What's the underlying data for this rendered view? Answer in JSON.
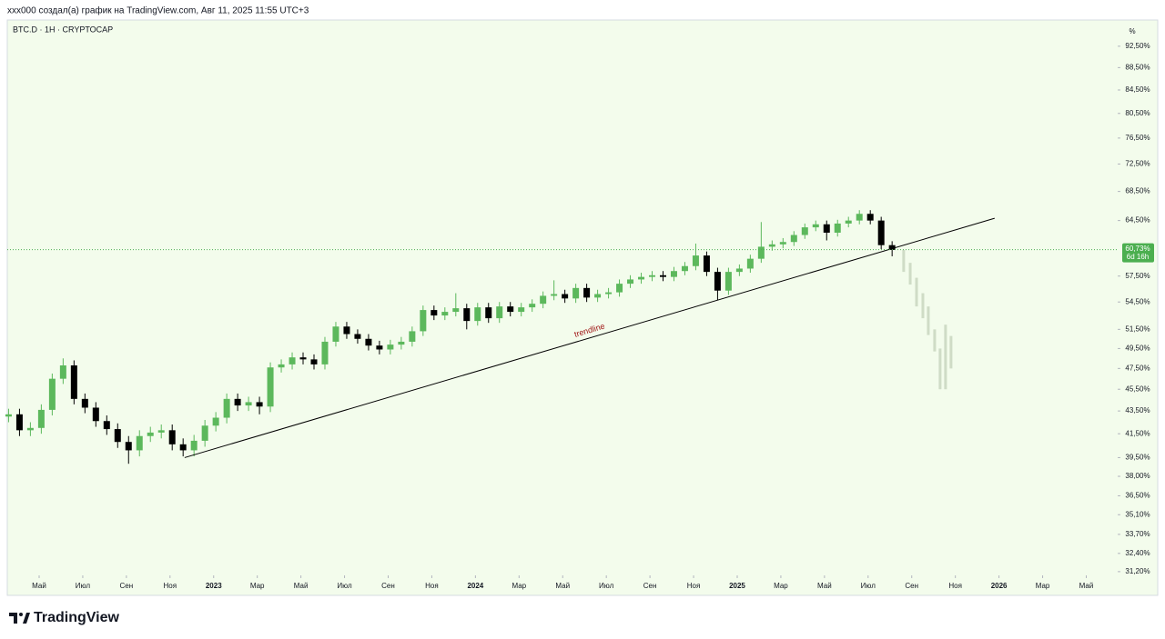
{
  "header": "xxx000 создал(а) график на TradingView.com, Авг 11, 2025 11:55 UTC+3",
  "footer_logo": "TradingView",
  "chart_data": {
    "type": "candlestick",
    "symbol": "BTC.D · 1H · CRYPTOCAP",
    "y_axis_label": "%",
    "log_scale": true,
    "grid": false,
    "up_color": "#5cb85c",
    "down_color": "#000000",
    "background": "#f3fcec",
    "x": [
      2.6,
      3.1,
      3.6,
      4.1,
      4.6,
      5.1,
      5.6,
      6.1,
      6.6,
      7.1,
      7.6,
      8.1,
      8.6,
      9.1,
      9.6,
      10.1,
      10.6,
      11.1,
      11.6,
      12.1,
      12.6,
      13.1,
      13.6,
      14.1,
      14.6,
      15.1,
      15.6,
      16.1,
      16.6,
      17.1,
      17.6,
      18.1,
      18.6,
      19.1,
      19.6,
      20.1,
      20.6,
      21.1,
      21.6,
      22.1,
      22.6,
      23.1,
      23.6,
      24.1,
      24.6,
      25.1,
      25.6,
      26.1,
      26.6,
      27.1,
      27.6,
      28.1,
      28.6,
      29.1,
      29.6,
      30.1,
      30.6,
      31.1,
      31.6,
      32.1,
      32.6,
      33.1,
      33.6,
      34.1,
      34.6,
      35.1,
      35.6,
      36.1,
      36.6,
      37.1,
      37.6,
      38.1,
      38.6,
      39.1,
      39.6,
      40.1,
      40.6,
      41.1,
      41.6,
      42.1,
      42.6,
      43.1
    ],
    "open": [
      43.0,
      43.2,
      41.8,
      42.0,
      43.6,
      46.5,
      47.8,
      44.6,
      43.8,
      42.6,
      41.9,
      40.8,
      40.1,
      41.3,
      41.6,
      41.8,
      40.6,
      40.1,
      40.9,
      42.2,
      42.9,
      44.6,
      44.0,
      44.3,
      43.9,
      47.6,
      47.9,
      48.6,
      48.4,
      47.9,
      50.2,
      51.8,
      51.0,
      50.5,
      49.8,
      49.4,
      49.9,
      50.2,
      51.3,
      53.6,
      53.0,
      53.4,
      53.8,
      52.4,
      53.9,
      52.7,
      54.0,
      53.4,
      53.9,
      54.3,
      55.2,
      55.4,
      54.9,
      56.1,
      55.0,
      55.4,
      55.6,
      56.6,
      57.1,
      57.4,
      57.6,
      57.4,
      58.1,
      58.7,
      60.0,
      58.0,
      55.8,
      58.0,
      58.4,
      59.6,
      61.1,
      61.4,
      61.7,
      62.6,
      63.6,
      64.0,
      62.9,
      64.1,
      64.5,
      65.4,
      64.5,
      61.3
    ],
    "high": [
      43.7,
      43.7,
      42.5,
      44.1,
      47.0,
      48.5,
      48.3,
      45.1,
      44.3,
      43.1,
      42.4,
      41.3,
      41.8,
      42.1,
      42.3,
      42.3,
      41.1,
      41.4,
      42.7,
      43.4,
      45.1,
      45.1,
      44.8,
      44.8,
      48.1,
      48.4,
      49.1,
      49.1,
      48.9,
      50.7,
      52.3,
      52.3,
      51.5,
      51.0,
      50.3,
      50.4,
      50.7,
      51.8,
      54.1,
      54.1,
      53.9,
      55.5,
      54.3,
      54.4,
      54.4,
      54.5,
      54.5,
      54.4,
      54.8,
      55.7,
      57.0,
      55.9,
      56.6,
      56.6,
      55.9,
      56.1,
      57.1,
      57.6,
      57.9,
      58.1,
      58.1,
      58.6,
      59.2,
      61.5,
      60.5,
      58.5,
      58.5,
      58.9,
      60.1,
      64.3,
      61.9,
      62.2,
      63.1,
      64.1,
      64.5,
      64.5,
      64.6,
      65.0,
      65.9,
      65.9,
      65.0,
      61.8
    ],
    "low": [
      42.5,
      41.3,
      41.3,
      41.5,
      43.1,
      46.0,
      44.1,
      43.3,
      42.1,
      41.4,
      40.3,
      39.0,
      39.6,
      40.8,
      41.1,
      40.1,
      39.6,
      39.6,
      40.4,
      41.7,
      42.4,
      43.5,
      43.5,
      43.2,
      43.4,
      47.1,
      47.4,
      47.9,
      47.4,
      47.4,
      49.7,
      50.5,
      50.0,
      49.3,
      48.9,
      48.9,
      49.4,
      49.7,
      50.8,
      52.5,
      52.5,
      52.9,
      51.5,
      51.9,
      52.2,
      52.2,
      52.9,
      52.9,
      53.4,
      53.8,
      54.7,
      54.4,
      54.4,
      54.5,
      54.5,
      54.9,
      55.1,
      56.1,
      56.6,
      56.9,
      56.9,
      56.9,
      57.6,
      58.2,
      57.5,
      54.7,
      55.3,
      57.5,
      57.9,
      59.1,
      60.6,
      60.9,
      61.2,
      62.1,
      63.1,
      61.9,
      62.4,
      63.6,
      64.0,
      64.0,
      60.8,
      59.9
    ],
    "close": [
      43.2,
      41.8,
      42.0,
      43.6,
      46.5,
      47.8,
      44.6,
      43.8,
      42.6,
      41.9,
      40.8,
      40.1,
      41.3,
      41.6,
      41.8,
      40.6,
      40.1,
      40.9,
      42.2,
      42.9,
      44.6,
      44.0,
      44.3,
      43.9,
      47.6,
      47.9,
      48.6,
      48.4,
      47.9,
      50.2,
      51.8,
      51.0,
      50.5,
      49.8,
      49.4,
      49.9,
      50.2,
      51.3,
      53.6,
      53.0,
      53.4,
      53.8,
      52.4,
      53.9,
      52.7,
      54.0,
      53.4,
      53.9,
      54.3,
      55.2,
      55.4,
      54.9,
      56.1,
      55.0,
      55.4,
      55.6,
      56.6,
      57.1,
      57.4,
      57.6,
      57.4,
      58.1,
      58.7,
      60.0,
      58.0,
      55.8,
      58.0,
      58.4,
      59.6,
      61.1,
      61.4,
      61.7,
      62.6,
      63.6,
      64.0,
      62.9,
      64.1,
      64.5,
      65.4,
      64.5,
      61.3,
      60.7
    ],
    "projection": {
      "color": "#cfdcc6",
      "x": [
        43.63,
        43.93,
        44.22,
        44.51,
        44.76,
        45.05,
        45.3,
        45.55,
        45.8
      ],
      "high": [
        60.7,
        59.1,
        57.3,
        55.5,
        54.0,
        51.5,
        49.5,
        52.0,
        50.8
      ],
      "low": [
        58.0,
        56.5,
        54.0,
        52.7,
        50.9,
        49.2,
        45.5,
        45.5,
        47.5
      ]
    },
    "trendline": {
      "label": "trendline",
      "color": "#000000",
      "label_color": "#a01818",
      "x": [
        10.67,
        47.8
      ],
      "y": [
        39.5,
        64.8
      ]
    },
    "last_price": {
      "value": 60.73,
      "label": "60,73%",
      "countdown": "6d 16h",
      "color": "#4caf50"
    },
    "xlim": [
      2.54,
      53.44
    ],
    "xticks": [
      {
        "value": 4,
        "label": "Май"
      },
      {
        "value": 6,
        "label": "Июл"
      },
      {
        "value": 8,
        "label": "Сен"
      },
      {
        "value": 10,
        "label": "Ноя"
      },
      {
        "value": 12,
        "label": "2023"
      },
      {
        "value": 14,
        "label": "Мар"
      },
      {
        "value": 16,
        "label": "Май"
      },
      {
        "value": 18,
        "label": "Июл"
      },
      {
        "value": 20,
        "label": "Сен"
      },
      {
        "value": 22,
        "label": "Ноя"
      },
      {
        "value": 24,
        "label": "2024"
      },
      {
        "value": 26,
        "label": "Мар"
      },
      {
        "value": 28,
        "label": "Май"
      },
      {
        "value": 30,
        "label": "Июл"
      },
      {
        "value": 32,
        "label": "Сен"
      },
      {
        "value": 34,
        "label": "Ноя"
      },
      {
        "value": 36,
        "label": "2025"
      },
      {
        "value": 38,
        "label": "Мар"
      },
      {
        "value": 40,
        "label": "Май"
      },
      {
        "value": 42,
        "label": "Июл"
      },
      {
        "value": 44,
        "label": "Сен"
      },
      {
        "value": 46,
        "label": "Ноя"
      },
      {
        "value": 48,
        "label": "2026"
      },
      {
        "value": 50,
        "label": "Мар"
      },
      {
        "value": 52,
        "label": "Май"
      }
    ],
    "ylim": [
      30.96,
      97.66
    ],
    "yticks": [
      {
        "value": 92.5,
        "label": "92,50%"
      },
      {
        "value": 88.5,
        "label": "88,50%"
      },
      {
        "value": 84.5,
        "label": "84,50%"
      },
      {
        "value": 80.5,
        "label": "80,50%"
      },
      {
        "value": 76.5,
        "label": "76,50%"
      },
      {
        "value": 72.5,
        "label": "72,50%"
      },
      {
        "value": 68.5,
        "label": "68,50%"
      },
      {
        "value": 64.5,
        "label": "64,50%"
      },
      {
        "value": 57.5,
        "label": "57,50%"
      },
      {
        "value": 54.5,
        "label": "54,50%"
      },
      {
        "value": 51.5,
        "label": "51,50%"
      },
      {
        "value": 49.5,
        "label": "49,50%"
      },
      {
        "value": 47.5,
        "label": "47,50%"
      },
      {
        "value": 45.5,
        "label": "45,50%"
      },
      {
        "value": 43.5,
        "label": "43,50%"
      },
      {
        "value": 41.5,
        "label": "41,50%"
      },
      {
        "value": 39.5,
        "label": "39,50%"
      },
      {
        "value": 38,
        "label": "38,00%"
      },
      {
        "value": 36.5,
        "label": "36,50%"
      },
      {
        "value": 35.1,
        "label": "35,10%"
      },
      {
        "value": 33.7,
        "label": "33,70%"
      },
      {
        "value": 32.4,
        "label": "32,40%"
      },
      {
        "value": 31.2,
        "label": "31,20%"
      }
    ]
  }
}
